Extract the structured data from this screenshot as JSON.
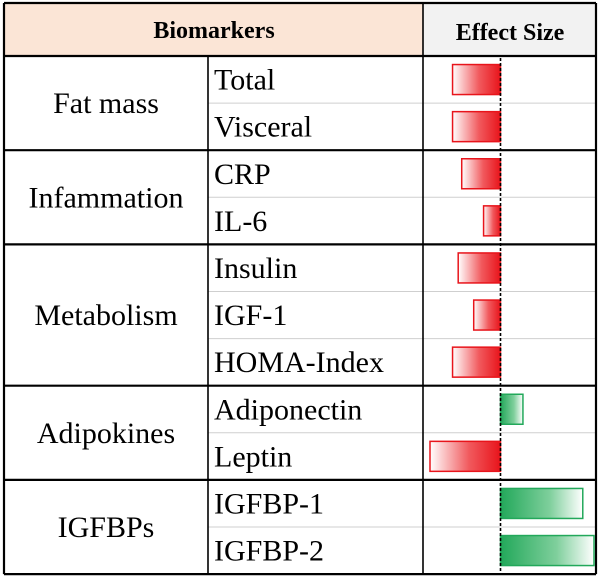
{
  "header": {
    "biomarkers_label": "Biomarkers",
    "effect_size_label": "Effect Size"
  },
  "colors": {
    "header_left_bg": "#fbe5d6",
    "header_right_bg": "#f2f2f2",
    "negative": "#e8141b",
    "positive": "#22a85a",
    "grid": "#000000"
  },
  "chart_data": {
    "type": "bar",
    "orientation": "horizontal",
    "value_meaning": "relative effect size; negative extends left of zero line, positive extends right",
    "xlim": [
      -1.0,
      1.25
    ],
    "zero_line": "dashed",
    "groups": [
      {
        "name": "Fat mass",
        "items": [
          {
            "label": "Total",
            "value": -0.68
          },
          {
            "label": "Visceral",
            "value": -0.68
          }
        ]
      },
      {
        "name": "Infammation",
        "items": [
          {
            "label": "CRP",
            "value": -0.55
          },
          {
            "label": "IL-6",
            "value": -0.24
          }
        ]
      },
      {
        "name": "Metabolism",
        "items": [
          {
            "label": "Insulin",
            "value": -0.6
          },
          {
            "label": "IGF-1",
            "value": -0.38
          },
          {
            "label": "HOMA-Index",
            "value": -0.68
          }
        ]
      },
      {
        "name": "Adipokines",
        "items": [
          {
            "label": "Adiponectin",
            "value": 0.3
          },
          {
            "label": "Leptin",
            "value": -1.0
          }
        ]
      },
      {
        "name": "IGFBPs",
        "items": [
          {
            "label": "IGFBP-1",
            "value": 1.1
          },
          {
            "label": "IGFBP-2",
            "value": 1.25
          }
        ]
      }
    ]
  }
}
